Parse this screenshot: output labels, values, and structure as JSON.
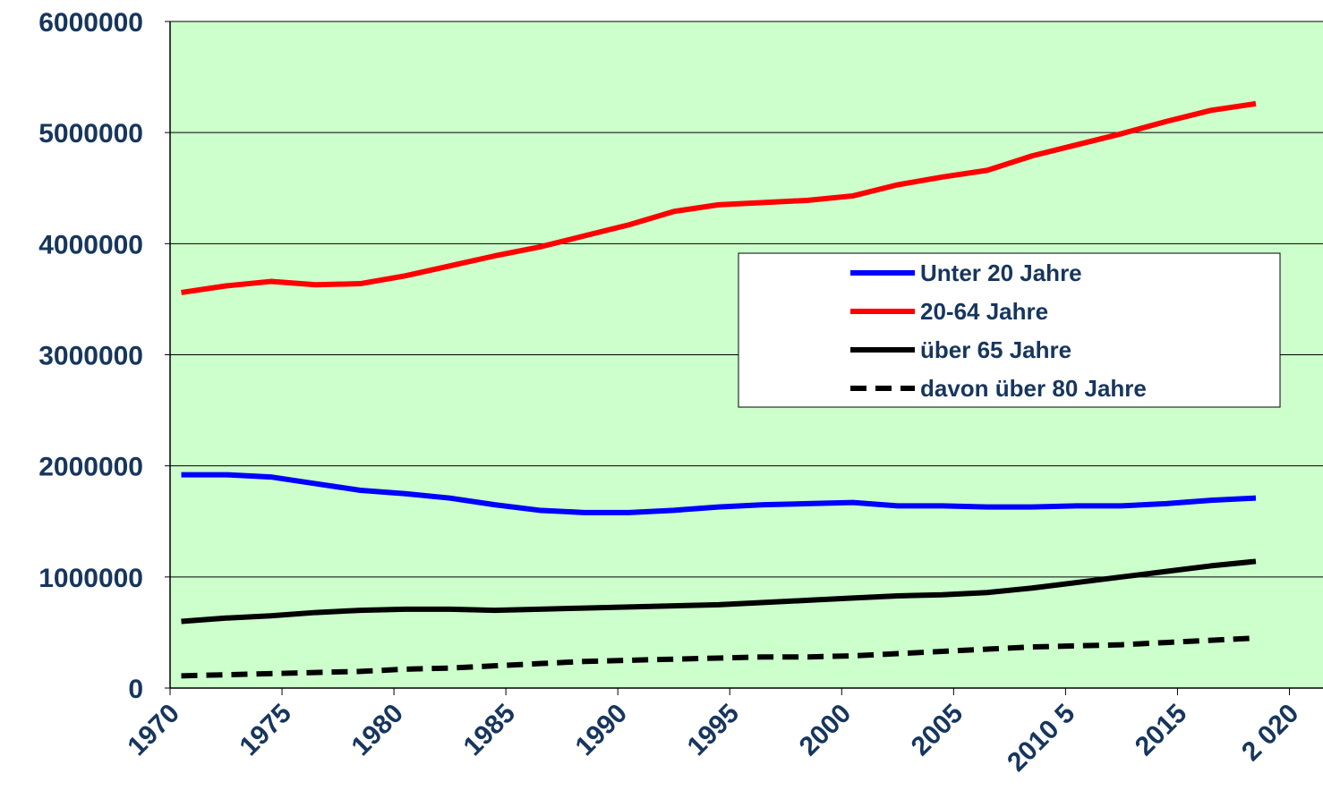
{
  "chart_data": {
    "type": "line",
    "x": [
      1970.5,
      1972.5,
      1974.5,
      1976.5,
      1978.5,
      1980.5,
      1982.5,
      1984.5,
      1986.5,
      1988.5,
      1990.5,
      1992.5,
      1994.5,
      1996.5,
      1998.5,
      2000.5,
      2002.5,
      2004.5,
      2006.5,
      2008.5,
      2010.5,
      2012.5,
      2014.5,
      2016.5,
      2018.5
    ],
    "series": [
      {
        "name": "Unter 20 Jahre",
        "color": "#0000ff",
        "style": "solid",
        "values": [
          1920000,
          1920000,
          1900000,
          1840000,
          1780000,
          1750000,
          1710000,
          1650000,
          1600000,
          1580000,
          1580000,
          1600000,
          1630000,
          1650000,
          1660000,
          1670000,
          1640000,
          1640000,
          1630000,
          1630000,
          1640000,
          1640000,
          1660000,
          1690000,
          1710000
        ]
      },
      {
        "name": "20-64 Jahre",
        "color": "#ff0000",
        "style": "solid",
        "values": [
          3560000,
          3620000,
          3660000,
          3630000,
          3640000,
          3710000,
          3800000,
          3890000,
          3970000,
          4070000,
          4170000,
          4290000,
          4350000,
          4370000,
          4390000,
          4430000,
          4530000,
          4600000,
          4660000,
          4790000,
          4890000,
          4990000,
          5100000,
          5200000,
          5260000
        ]
      },
      {
        "name": "über 65 Jahre",
        "color": "#000000",
        "style": "solid",
        "values": [
          600000,
          630000,
          650000,
          680000,
          700000,
          710000,
          710000,
          700000,
          710000,
          720000,
          730000,
          740000,
          750000,
          770000,
          790000,
          810000,
          830000,
          840000,
          860000,
          900000,
          950000,
          1000000,
          1050000,
          1100000,
          1140000
        ]
      },
      {
        "name": "davon über 80 Jahre",
        "color": "#000000",
        "style": "dashed",
        "values": [
          110000,
          120000,
          130000,
          140000,
          150000,
          170000,
          180000,
          200000,
          220000,
          240000,
          250000,
          260000,
          270000,
          280000,
          280000,
          290000,
          310000,
          330000,
          350000,
          370000,
          380000,
          390000,
          410000,
          430000,
          450000
        ]
      }
    ],
    "xlim": [
      1970,
      2021.5
    ],
    "xticks": [
      1970,
      1975,
      1980,
      1985,
      1990,
      1995,
      2000,
      2005,
      {
        "value": 2010,
        "label": "2010 5"
      },
      2015,
      {
        "value": 2020,
        "label": "2 020"
      }
    ],
    "ylim": [
      0,
      6000000
    ],
    "yticks": [
      0,
      1000000,
      2000000,
      3000000,
      4000000,
      5000000,
      6000000
    ],
    "grid": true,
    "background": "#ccffcc"
  }
}
